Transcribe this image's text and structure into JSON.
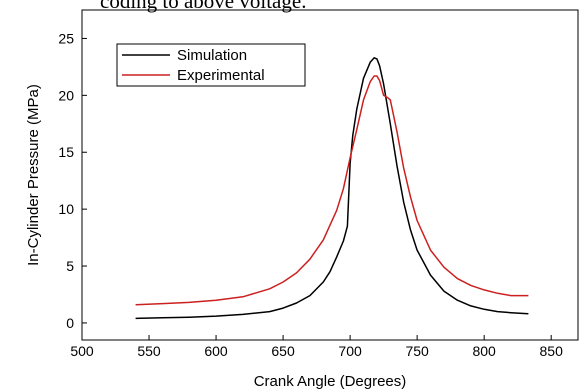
{
  "page": {
    "cropped_top_text": "coding to above voltage."
  },
  "chart_data": {
    "type": "line",
    "title": "",
    "xlabel": "Crank Angle (Degrees)",
    "ylabel": "In-Cylinder Pressure (MPa)",
    "xlim": [
      500,
      870
    ],
    "ylim": [
      -1.5,
      27.5
    ],
    "xticks": [
      500,
      550,
      600,
      650,
      700,
      750,
      800,
      850
    ],
    "yticks": [
      0,
      5,
      10,
      15,
      20,
      25
    ],
    "grid": false,
    "legend": {
      "position": "top-left",
      "boxed": true
    },
    "series": [
      {
        "name": "Simulation",
        "color": "#000000",
        "x": [
          540,
          560,
          580,
          600,
          620,
          640,
          650,
          660,
          670,
          680,
          685,
          690,
          695,
          698,
          700,
          702,
          705,
          710,
          715,
          718,
          720,
          722,
          725,
          730,
          735,
          740,
          745,
          750,
          760,
          770,
          780,
          790,
          800,
          810,
          820,
          833
        ],
        "y": [
          0.4,
          0.45,
          0.5,
          0.6,
          0.75,
          1.0,
          1.3,
          1.75,
          2.4,
          3.6,
          4.5,
          5.8,
          7.2,
          8.5,
          14.0,
          16.5,
          18.8,
          21.5,
          22.9,
          23.3,
          23.2,
          22.6,
          21.0,
          17.5,
          13.8,
          10.6,
          8.2,
          6.4,
          4.2,
          2.8,
          2.0,
          1.5,
          1.2,
          1.0,
          0.9,
          0.8
        ]
      },
      {
        "name": "Experimental",
        "color": "#cc2020",
        "x": [
          540,
          560,
          580,
          600,
          620,
          640,
          650,
          660,
          670,
          680,
          690,
          695,
          700,
          705,
          710,
          715,
          718,
          720,
          722,
          725,
          728,
          730,
          735,
          740,
          745,
          750,
          760,
          770,
          780,
          790,
          800,
          810,
          820,
          833
        ],
        "y": [
          1.6,
          1.7,
          1.8,
          2.0,
          2.3,
          3.0,
          3.6,
          4.4,
          5.6,
          7.3,
          9.9,
          11.8,
          14.5,
          17.0,
          19.6,
          21.2,
          21.7,
          21.7,
          21.3,
          20.0,
          19.8,
          19.6,
          16.8,
          13.6,
          11.1,
          9.0,
          6.4,
          4.9,
          3.9,
          3.3,
          2.9,
          2.6,
          2.4,
          2.4
        ]
      }
    ]
  }
}
